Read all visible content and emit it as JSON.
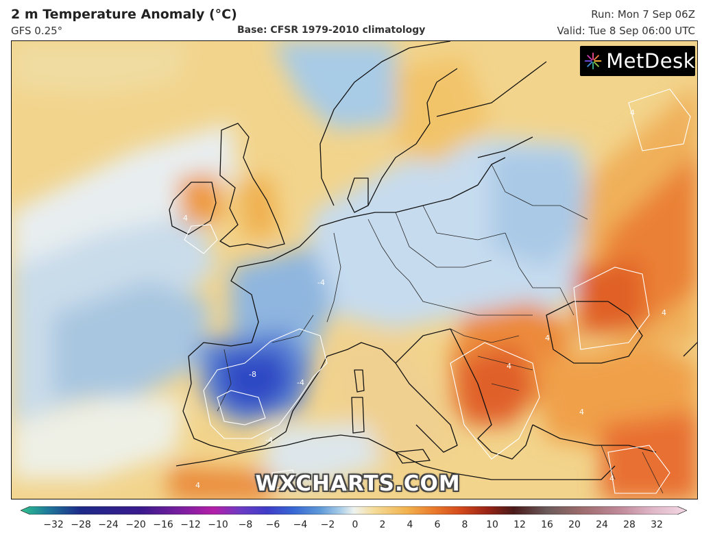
{
  "header": {
    "title": "2 m Temperature Anomaly (°C)",
    "model": "GFS 0.25°",
    "base": "Base: CFSR 1979-2010 climatology",
    "run": "Run: Mon 7 Sep 06Z",
    "valid": "Valid: Tue 8 Sep 06:00 UTC"
  },
  "logo": {
    "text": "MetDesk",
    "icon": "metdesk-starburst-icon"
  },
  "watermark": "WXCHARTS.COM",
  "map": {
    "contour_labels": [
      "4",
      "4",
      "4",
      "-4",
      "-4",
      "-8",
      "-4",
      "4",
      "4",
      "4",
      "4",
      "4"
    ]
  },
  "colorbar": {
    "ticks": [
      "−32",
      "−28",
      "−24",
      "−20",
      "−16",
      "−12",
      "−10",
      "−8",
      "−6",
      "−4",
      "−2",
      "0",
      "2",
      "4",
      "6",
      "8",
      "10",
      "12",
      "16",
      "20",
      "24",
      "28",
      "32"
    ],
    "colors": [
      "#2ec48d",
      "#1f7a9a",
      "#1e2a8a",
      "#3a1a8c",
      "#7a1ea0",
      "#b41fa8",
      "#6c3bc4",
      "#3f3cc8",
      "#3768d4",
      "#5f9ad8",
      "#a9cde8",
      "#eef3f0",
      "#f5dc9a",
      "#f2b24e",
      "#ea7b2c",
      "#d44a1c",
      "#9a2416",
      "#4a1a1a",
      "#6b5a5a",
      "#9c6b6b",
      "#c08a9a",
      "#e0b8c8",
      "#f4d8e4"
    ]
  }
}
